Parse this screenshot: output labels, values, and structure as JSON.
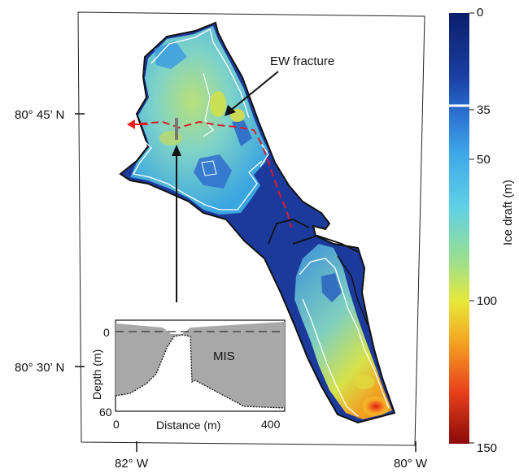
{
  "map": {
    "lat_labels": [
      "80° 45’ N",
      "80° 30’ N"
    ],
    "lon_labels": [
      "82° W",
      "80° W"
    ],
    "annotation": "EW fracture"
  },
  "colorbar": {
    "title": "Ice draft (m)",
    "ticks": [
      "0",
      "35",
      "50",
      "100",
      "150"
    ],
    "colors": [
      "#0b1f6b",
      "#1a3fa3",
      "#2a6fd0",
      "#3fa9e8",
      "#5fd0e6",
      "#9ee08a",
      "#e8e83a",
      "#f5a623",
      "#e8401c",
      "#8b0a0a"
    ],
    "marker_value": 35
  },
  "inset": {
    "label": "MIS",
    "ylabel": "Depth (m)",
    "xlabel": "Distance (m)",
    "y_ticks": [
      "0",
      "60"
    ],
    "x_ticks": [
      "0",
      "400"
    ]
  },
  "colors": {
    "ice_shelf_outline": "#1a1a1a",
    "contour": "#ffffff",
    "fracture_line": "#d81e2a",
    "arrow": "#e8201c",
    "profile_fill": "#a8a8a8"
  }
}
